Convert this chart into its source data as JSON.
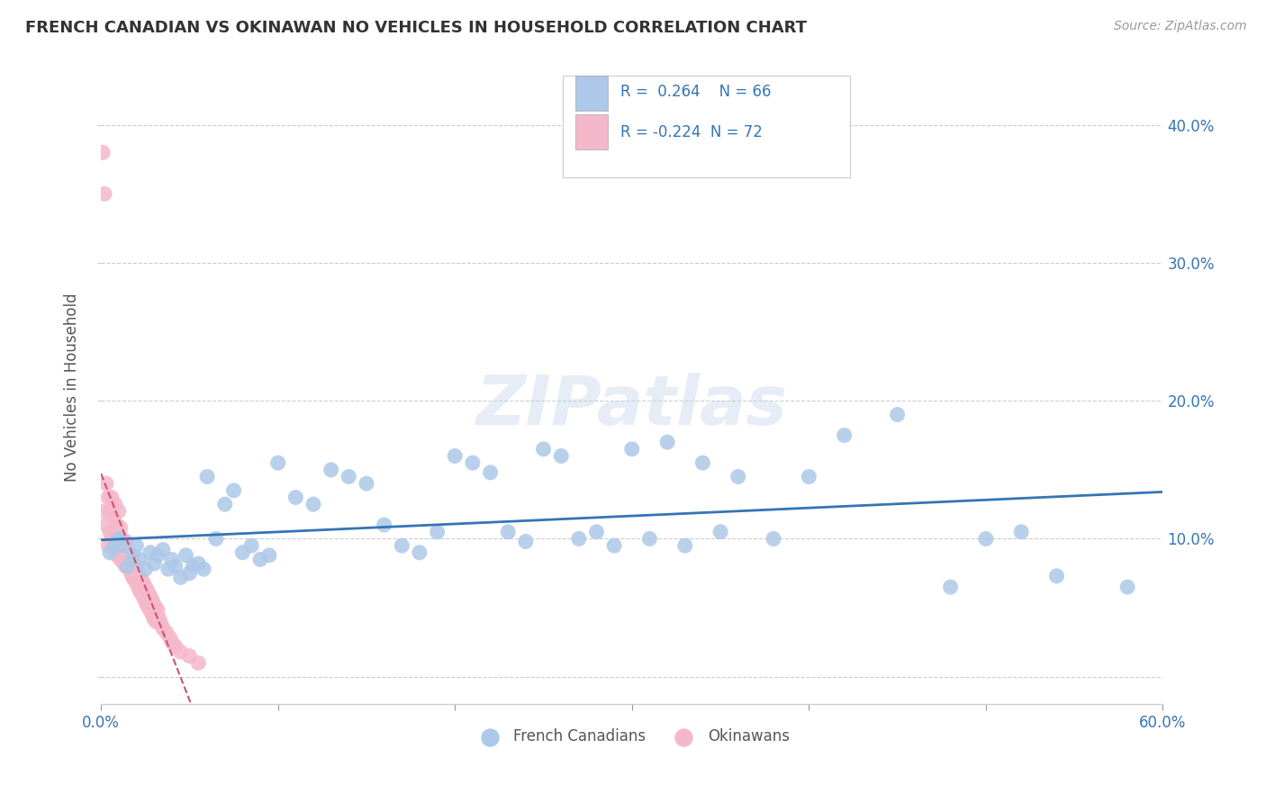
{
  "title": "FRENCH CANADIAN VS OKINAWAN NO VEHICLES IN HOUSEHOLD CORRELATION CHART",
  "source": "Source: ZipAtlas.com",
  "ylabel": "No Vehicles in Household",
  "xlim": [
    0.0,
    0.6
  ],
  "ylim": [
    -0.02,
    0.44
  ],
  "xticks": [
    0.0,
    0.1,
    0.2,
    0.3,
    0.4,
    0.5,
    0.6
  ],
  "xtick_labels": [
    "0.0%",
    "",
    "",
    "",
    "",
    "",
    "60.0%"
  ],
  "yticks": [
    0.0,
    0.1,
    0.2,
    0.3,
    0.4
  ],
  "ytick_labels_right": [
    "",
    "10.0%",
    "20.0%",
    "30.0%",
    "40.0%"
  ],
  "blue_R": 0.264,
  "blue_N": 66,
  "pink_R": -0.224,
  "pink_N": 72,
  "blue_color": "#adc8e8",
  "blue_line_color": "#3575b5",
  "pink_color": "#f5b8ca",
  "pink_line_color": "#d05070",
  "watermark": "ZIPatlas",
  "legend_blue_text": "R =  0.264    N = 66",
  "legend_pink_text": "R = -0.224  N = 72",
  "legend_label_blue": "French Canadians",
  "legend_label_pink": "Okinawans",
  "blue_scatter_x": [
    0.005,
    0.008,
    0.01,
    0.012,
    0.015,
    0.018,
    0.02,
    0.022,
    0.025,
    0.028,
    0.03,
    0.032,
    0.035,
    0.038,
    0.04,
    0.042,
    0.045,
    0.048,
    0.05,
    0.052,
    0.055,
    0.058,
    0.06,
    0.065,
    0.07,
    0.075,
    0.08,
    0.085,
    0.09,
    0.095,
    0.1,
    0.11,
    0.12,
    0.13,
    0.14,
    0.15,
    0.16,
    0.17,
    0.18,
    0.19,
    0.2,
    0.21,
    0.22,
    0.23,
    0.24,
    0.25,
    0.26,
    0.27,
    0.28,
    0.29,
    0.3,
    0.31,
    0.32,
    0.33,
    0.34,
    0.35,
    0.36,
    0.38,
    0.4,
    0.42,
    0.45,
    0.48,
    0.5,
    0.52,
    0.54,
    0.58
  ],
  "blue_scatter_y": [
    0.09,
    0.095,
    0.1,
    0.095,
    0.08,
    0.088,
    0.095,
    0.085,
    0.078,
    0.09,
    0.082,
    0.088,
    0.092,
    0.078,
    0.085,
    0.08,
    0.072,
    0.088,
    0.075,
    0.08,
    0.082,
    0.078,
    0.145,
    0.1,
    0.125,
    0.135,
    0.09,
    0.095,
    0.085,
    0.088,
    0.155,
    0.13,
    0.125,
    0.15,
    0.145,
    0.14,
    0.11,
    0.095,
    0.09,
    0.105,
    0.16,
    0.155,
    0.148,
    0.105,
    0.098,
    0.165,
    0.16,
    0.1,
    0.105,
    0.095,
    0.165,
    0.1,
    0.17,
    0.095,
    0.155,
    0.105,
    0.145,
    0.1,
    0.145,
    0.175,
    0.19,
    0.065,
    0.1,
    0.105,
    0.073,
    0.065
  ],
  "pink_scatter_x": [
    0.001,
    0.002,
    0.002,
    0.003,
    0.003,
    0.004,
    0.004,
    0.005,
    0.005,
    0.006,
    0.006,
    0.007,
    0.007,
    0.008,
    0.008,
    0.009,
    0.009,
    0.01,
    0.01,
    0.011,
    0.011,
    0.012,
    0.012,
    0.013,
    0.013,
    0.014,
    0.014,
    0.015,
    0.015,
    0.016,
    0.016,
    0.017,
    0.017,
    0.018,
    0.018,
    0.019,
    0.019,
    0.02,
    0.02,
    0.021,
    0.021,
    0.022,
    0.022,
    0.023,
    0.023,
    0.024,
    0.024,
    0.025,
    0.025,
    0.026,
    0.026,
    0.027,
    0.027,
    0.028,
    0.028,
    0.029,
    0.029,
    0.03,
    0.03,
    0.031,
    0.031,
    0.032,
    0.033,
    0.034,
    0.035,
    0.037,
    0.039,
    0.04,
    0.042,
    0.045,
    0.05,
    0.055
  ],
  "pink_scatter_y": [
    0.38,
    0.35,
    0.12,
    0.14,
    0.11,
    0.13,
    0.095,
    0.12,
    0.105,
    0.13,
    0.1,
    0.115,
    0.095,
    0.125,
    0.1,
    0.11,
    0.088,
    0.12,
    0.095,
    0.108,
    0.085,
    0.1,
    0.09,
    0.095,
    0.082,
    0.098,
    0.08,
    0.092,
    0.085,
    0.088,
    0.078,
    0.085,
    0.075,
    0.082,
    0.072,
    0.08,
    0.07,
    0.078,
    0.068,
    0.075,
    0.065,
    0.072,
    0.062,
    0.07,
    0.06,
    0.068,
    0.058,
    0.065,
    0.055,
    0.063,
    0.052,
    0.06,
    0.05,
    0.058,
    0.048,
    0.055,
    0.045,
    0.052,
    0.042,
    0.05,
    0.04,
    0.048,
    0.042,
    0.038,
    0.035,
    0.032,
    0.028,
    0.025,
    0.022,
    0.018,
    0.015,
    0.01
  ]
}
